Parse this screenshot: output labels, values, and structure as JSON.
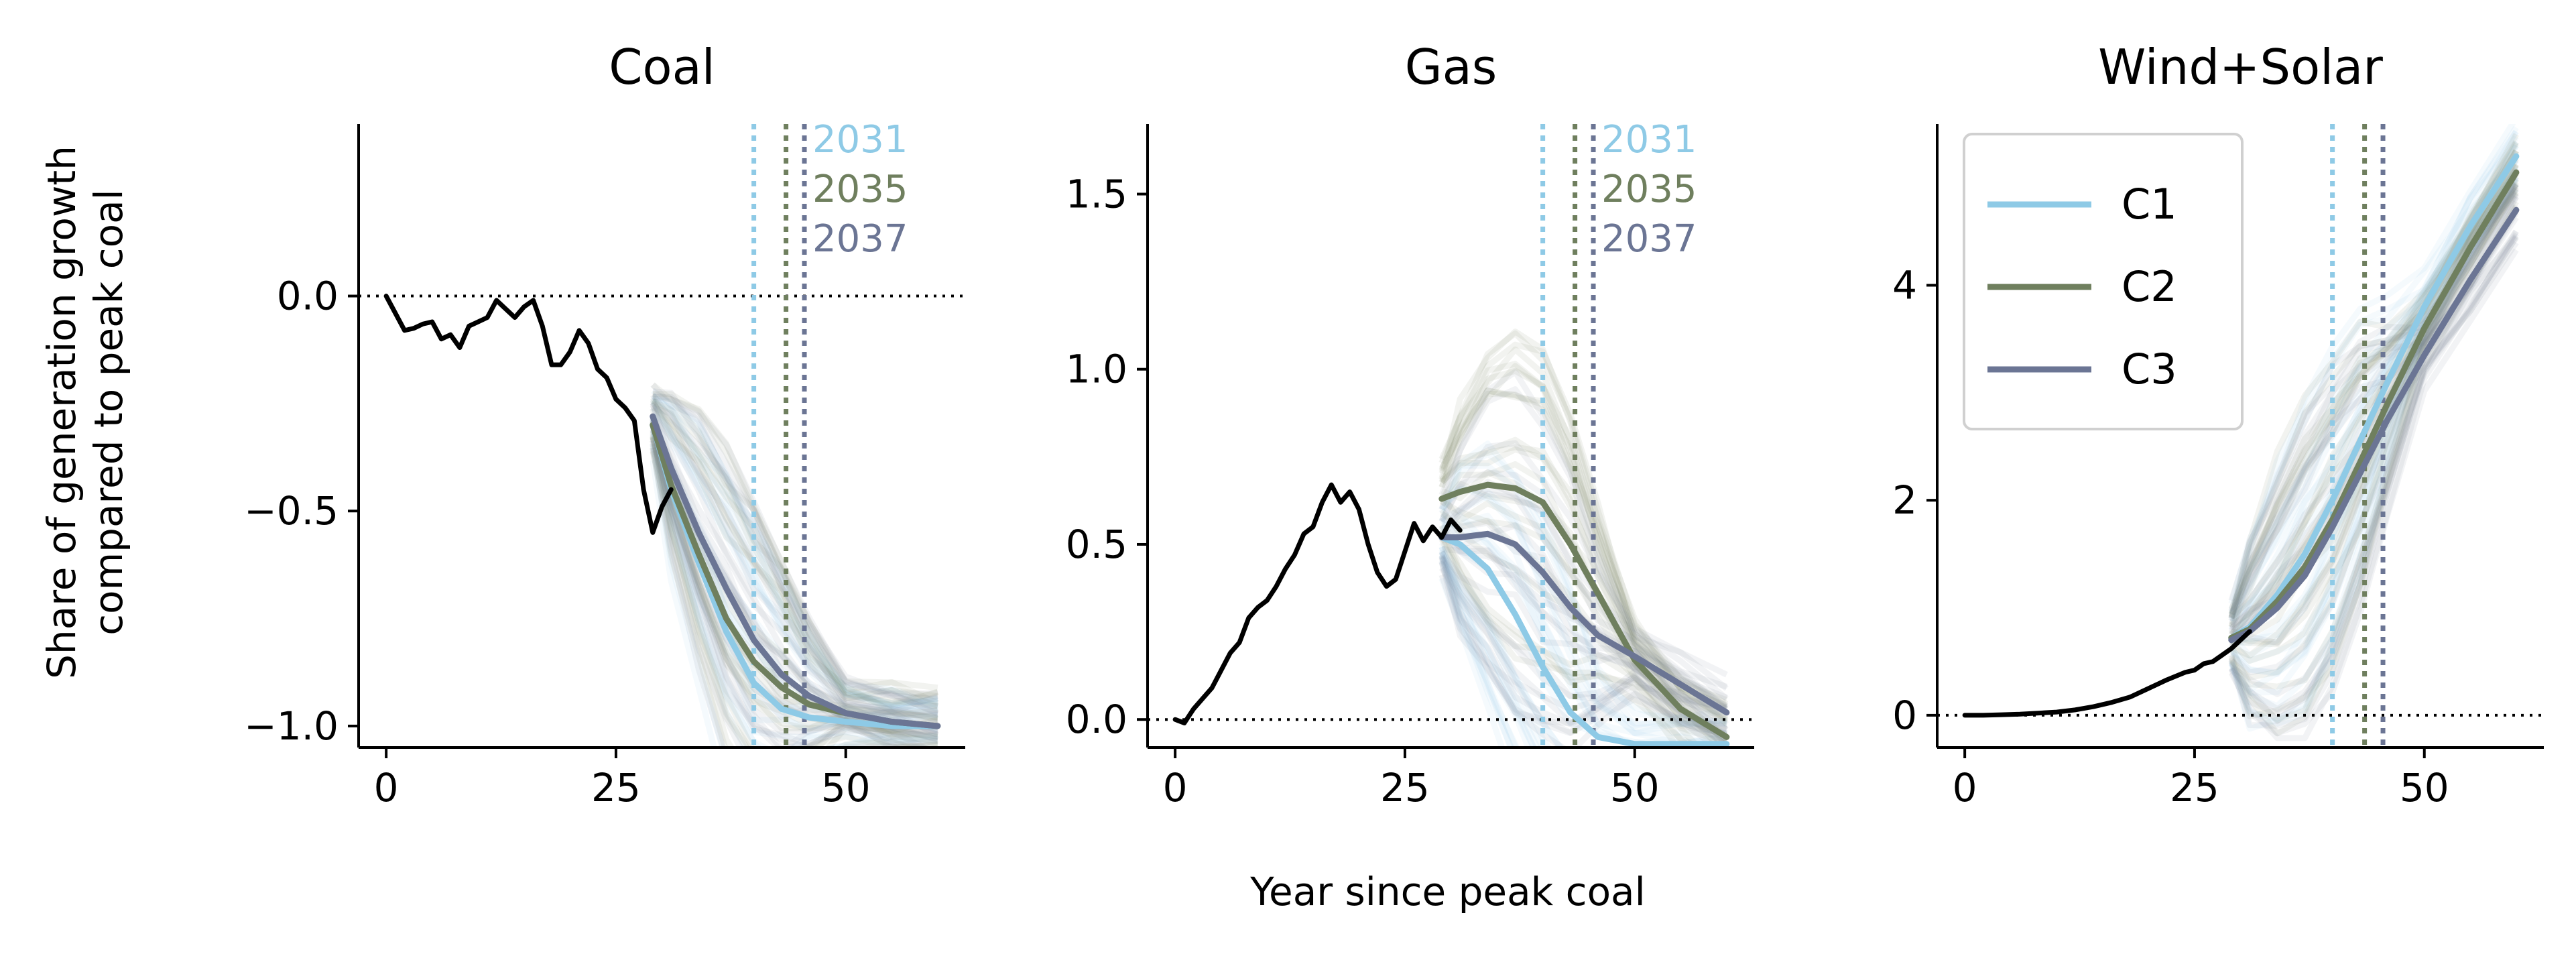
{
  "figure": {
    "ylabel_line1": "Share of generation growth",
    "ylabel_line2": "compared to peak coal",
    "xlabel": "Year since peak coal"
  },
  "colors": {
    "C1": "#8ecae6",
    "C2": "#6f7f5e",
    "C3": "#6b7594",
    "historical": "#000000",
    "ensemble": "#b9bfd2"
  },
  "chart_data": [
    {
      "type": "line",
      "title": "Coal",
      "xlim": [
        -3,
        63
      ],
      "ylim": [
        -1.05,
        0.4
      ],
      "xticks": [
        0,
        25,
        50
      ],
      "yticks": [
        {
          "value": 0.0,
          "label": "0.0"
        },
        {
          "value": -0.5,
          "label": "−0.5"
        },
        {
          "value": -1.0,
          "label": "−1.0"
        }
      ],
      "zero_line": 0,
      "historical": {
        "x": [
          0,
          1,
          2,
          3,
          4,
          5,
          6,
          7,
          8,
          9,
          10,
          11,
          12,
          13,
          14,
          15,
          16,
          17,
          18,
          19,
          20,
          21,
          22,
          23,
          24,
          25,
          26,
          27,
          28,
          29,
          30,
          31
        ],
        "y": [
          0,
          -0.04,
          -0.08,
          -0.075,
          -0.065,
          -0.06,
          -0.1,
          -0.09,
          -0.12,
          -0.07,
          -0.06,
          -0.05,
          -0.01,
          -0.03,
          -0.05,
          -0.025,
          -0.01,
          -0.07,
          -0.16,
          -0.16,
          -0.13,
          -0.08,
          -0.11,
          -0.17,
          -0.19,
          -0.24,
          -0.26,
          -0.29,
          -0.45,
          -0.55,
          -0.49,
          -0.45
        ]
      },
      "markers": [
        {
          "x": 40,
          "label": "2031",
          "series": "C1"
        },
        {
          "x": 43.5,
          "label": "2035",
          "series": "C2"
        },
        {
          "x": 45.5,
          "label": "2037",
          "series": "C3"
        }
      ],
      "series": [
        {
          "name": "C1",
          "x": [
            29,
            31,
            34,
            37,
            40,
            43,
            46,
            50,
            55,
            60
          ],
          "y": [
            -0.3,
            -0.45,
            -0.62,
            -0.78,
            -0.9,
            -0.96,
            -0.98,
            -0.99,
            -1.0,
            -1.0
          ]
        },
        {
          "name": "C2",
          "x": [
            29,
            31,
            34,
            37,
            40,
            43,
            46,
            50,
            55,
            60
          ],
          "y": [
            -0.3,
            -0.44,
            -0.6,
            -0.75,
            -0.85,
            -0.91,
            -0.95,
            -0.97,
            -0.99,
            -1.0
          ]
        },
        {
          "name": "C3",
          "x": [
            29,
            31,
            34,
            37,
            40,
            43,
            46,
            50,
            55,
            60
          ],
          "y": [
            -0.28,
            -0.4,
            -0.55,
            -0.68,
            -0.8,
            -0.88,
            -0.93,
            -0.97,
            -0.99,
            -1.0
          ]
        }
      ]
    },
    {
      "type": "line",
      "title": "Gas",
      "xlim": [
        -3,
        63
      ],
      "ylim": [
        -0.08,
        1.7
      ],
      "xticks": [
        0,
        25,
        50
      ],
      "yticks": [
        {
          "value": 0.0,
          "label": "0.0"
        },
        {
          "value": 0.5,
          "label": "0.5"
        },
        {
          "value": 1.0,
          "label": "1.0"
        },
        {
          "value": 1.5,
          "label": "1.5"
        }
      ],
      "zero_line": 0,
      "historical": {
        "x": [
          0,
          1,
          2,
          3,
          4,
          5,
          6,
          7,
          8,
          9,
          10,
          11,
          12,
          13,
          14,
          15,
          16,
          17,
          18,
          19,
          20,
          21,
          22,
          23,
          24,
          25,
          26,
          27,
          28,
          29,
          30,
          31
        ],
        "y": [
          0,
          -0.01,
          0.03,
          0.06,
          0.09,
          0.14,
          0.19,
          0.22,
          0.29,
          0.32,
          0.34,
          0.38,
          0.43,
          0.47,
          0.53,
          0.55,
          0.62,
          0.67,
          0.62,
          0.65,
          0.6,
          0.5,
          0.42,
          0.38,
          0.4,
          0.48,
          0.56,
          0.51,
          0.55,
          0.52,
          0.57,
          0.54
        ]
      },
      "markers": [
        {
          "x": 40,
          "label": "2031",
          "series": "C1"
        },
        {
          "x": 43.5,
          "label": "2035",
          "series": "C2"
        },
        {
          "x": 45.5,
          "label": "2037",
          "series": "C3"
        }
      ],
      "series": [
        {
          "name": "C1",
          "x": [
            29,
            31,
            34,
            37,
            40,
            43,
            46,
            50,
            55,
            60
          ],
          "y": [
            0.52,
            0.5,
            0.43,
            0.3,
            0.15,
            0.02,
            -0.05,
            -0.07,
            -0.07,
            -0.07
          ]
        },
        {
          "name": "C2",
          "x": [
            29,
            31,
            34,
            37,
            40,
            43,
            46,
            50,
            55,
            60
          ],
          "y": [
            0.63,
            0.65,
            0.67,
            0.66,
            0.62,
            0.5,
            0.36,
            0.17,
            0.03,
            -0.05
          ]
        },
        {
          "name": "C3",
          "x": [
            29,
            31,
            34,
            37,
            40,
            43,
            46,
            50,
            55,
            60
          ],
          "y": [
            0.52,
            0.52,
            0.53,
            0.5,
            0.42,
            0.32,
            0.24,
            0.18,
            0.1,
            0.02
          ]
        }
      ]
    },
    {
      "type": "line",
      "title": "Wind+Solar",
      "xlim": [
        -3,
        63
      ],
      "ylim": [
        -0.3,
        5.5
      ],
      "xticks": [
        0,
        25,
        50
      ],
      "yticks": [
        {
          "value": 0,
          "label": "0"
        },
        {
          "value": 2,
          "label": "2"
        },
        {
          "value": 4,
          "label": "4"
        }
      ],
      "zero_line": 0,
      "historical": {
        "x": [
          0,
          2,
          4,
          6,
          8,
          10,
          12,
          14,
          16,
          18,
          20,
          22,
          24,
          25,
          26,
          27,
          28,
          29,
          30,
          31
        ],
        "y": [
          0,
          0,
          0.005,
          0.01,
          0.02,
          0.03,
          0.05,
          0.08,
          0.12,
          0.17,
          0.25,
          0.33,
          0.4,
          0.42,
          0.48,
          0.5,
          0.56,
          0.62,
          0.7,
          0.78
        ]
      },
      "markers": [
        {
          "x": 40,
          "label": "",
          "series": "C1"
        },
        {
          "x": 43.5,
          "label": "",
          "series": "C2"
        },
        {
          "x": 45.5,
          "label": "",
          "series": "C3"
        }
      ],
      "series": [
        {
          "name": "C1",
          "x": [
            29,
            31,
            34,
            37,
            40,
            43,
            46,
            50,
            55,
            60
          ],
          "y": [
            0.72,
            0.82,
            1.12,
            1.5,
            2.0,
            2.55,
            3.1,
            3.8,
            4.55,
            5.2
          ]
        },
        {
          "name": "C2",
          "x": [
            29,
            31,
            34,
            37,
            40,
            43,
            46,
            50,
            55,
            60
          ],
          "y": [
            0.72,
            0.8,
            1.06,
            1.38,
            1.82,
            2.35,
            2.9,
            3.6,
            4.35,
            5.05
          ]
        },
        {
          "name": "C3",
          "x": [
            29,
            31,
            34,
            37,
            40,
            43,
            46,
            50,
            55,
            60
          ],
          "y": [
            0.7,
            0.78,
            1.0,
            1.3,
            1.75,
            2.25,
            2.75,
            3.35,
            4.05,
            4.7
          ]
        }
      ],
      "legend": {
        "position": "upper-left",
        "entries": [
          "C1",
          "C2",
          "C3"
        ]
      }
    }
  ]
}
